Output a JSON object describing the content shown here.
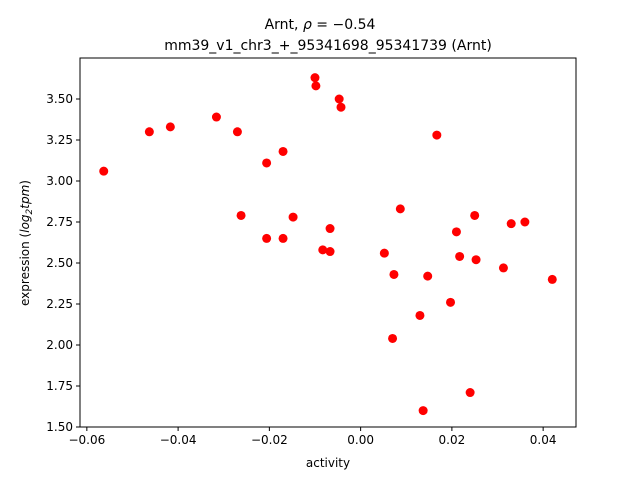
{
  "chart_data": {
    "type": "scatter",
    "title_parts": {
      "prefix": "Arnt, ",
      "rho": "ρ",
      "middle": " = ",
      "value": "−0.54"
    },
    "subtitle": "mm39_v1_chr3_+_95341698_95341739 (Arnt)",
    "xlabel": "activity",
    "ylabel_parts": {
      "prefix": "expression (",
      "log": "log",
      "sub": "2",
      "unit": "tpm",
      "suffix": ")"
    },
    "xlim": [
      -0.0615,
      0.0472
    ],
    "ylim": [
      1.5,
      3.75
    ],
    "xticks": [
      {
        "value": -0.06,
        "label": "−0.06"
      },
      {
        "value": -0.04,
        "label": "−0.04"
      },
      {
        "value": -0.02,
        "label": "−0.02"
      },
      {
        "value": 0.0,
        "label": "0.00"
      },
      {
        "value": 0.02,
        "label": "0.02"
      },
      {
        "value": 0.04,
        "label": "0.04"
      }
    ],
    "yticks": [
      {
        "value": 1.5,
        "label": "1.50"
      },
      {
        "value": 1.75,
        "label": "1.75"
      },
      {
        "value": 2.0,
        "label": "2.00"
      },
      {
        "value": 2.25,
        "label": "2.25"
      },
      {
        "value": 2.5,
        "label": "2.50"
      },
      {
        "value": 2.75,
        "label": "2.75"
      },
      {
        "value": 3.0,
        "label": "3.00"
      },
      {
        "value": 3.25,
        "label": "3.25"
      },
      {
        "value": 3.5,
        "label": "3.50"
      }
    ],
    "marker_color": "#ff0000",
    "grid": false,
    "points": [
      {
        "x": -0.0563,
        "y": 3.06
      },
      {
        "x": -0.0463,
        "y": 3.3
      },
      {
        "x": -0.0417,
        "y": 3.33
      },
      {
        "x": -0.0316,
        "y": 3.39
      },
      {
        "x": -0.027,
        "y": 3.3
      },
      {
        "x": -0.0262,
        "y": 2.79
      },
      {
        "x": -0.0206,
        "y": 3.11
      },
      {
        "x": -0.0206,
        "y": 2.65
      },
      {
        "x": -0.017,
        "y": 3.18
      },
      {
        "x": -0.017,
        "y": 2.65
      },
      {
        "x": -0.0148,
        "y": 2.78
      },
      {
        "x": -0.01,
        "y": 3.63
      },
      {
        "x": -0.0098,
        "y": 3.58
      },
      {
        "x": -0.0083,
        "y": 2.58
      },
      {
        "x": -0.0067,
        "y": 2.71
      },
      {
        "x": -0.0067,
        "y": 2.57
      },
      {
        "x": -0.0047,
        "y": 3.5
      },
      {
        "x": -0.0043,
        "y": 3.45
      },
      {
        "x": 0.0052,
        "y": 2.56
      },
      {
        "x": 0.007,
        "y": 2.04
      },
      {
        "x": 0.0073,
        "y": 2.43
      },
      {
        "x": 0.0087,
        "y": 2.83
      },
      {
        "x": 0.013,
        "y": 2.18
      },
      {
        "x": 0.0137,
        "y": 1.6
      },
      {
        "x": 0.0147,
        "y": 2.42
      },
      {
        "x": 0.0167,
        "y": 3.28
      },
      {
        "x": 0.0197,
        "y": 2.26
      },
      {
        "x": 0.021,
        "y": 2.69
      },
      {
        "x": 0.0217,
        "y": 2.54
      },
      {
        "x": 0.024,
        "y": 1.71
      },
      {
        "x": 0.025,
        "y": 2.79
      },
      {
        "x": 0.0253,
        "y": 2.52
      },
      {
        "x": 0.0313,
        "y": 2.47
      },
      {
        "x": 0.033,
        "y": 2.74
      },
      {
        "x": 0.036,
        "y": 2.75
      },
      {
        "x": 0.042,
        "y": 2.4
      }
    ]
  }
}
